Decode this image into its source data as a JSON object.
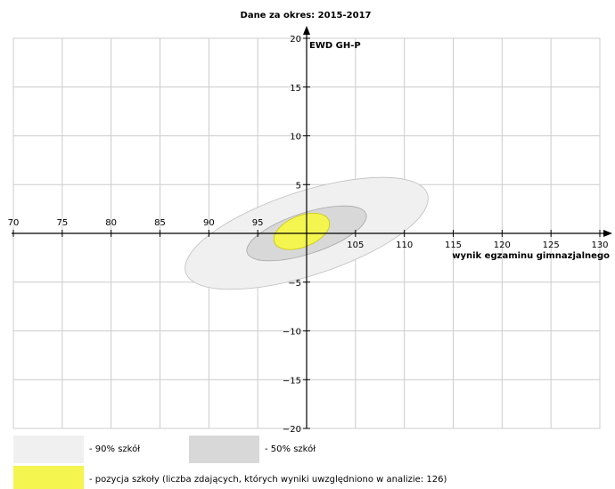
{
  "chart_data": {
    "type": "scatter",
    "title": "Dane za okres: 2015-2017",
    "xlabel": "wynik egzaminu gimnazjalnego",
    "ylabel": "EWD GH-P",
    "xlim": [
      70,
      130
    ],
    "ylim": [
      -20,
      20
    ],
    "x_ticks": [
      70,
      75,
      80,
      85,
      90,
      95,
      100,
      105,
      110,
      115,
      120,
      125,
      130
    ],
    "y_ticks": [
      -20,
      -15,
      -10,
      -5,
      0,
      5,
      10,
      15,
      20
    ],
    "x_tick_labels": [
      "70",
      "75",
      "80",
      "85",
      "90",
      "95",
      "",
      "105",
      "110",
      "115",
      "120",
      "125",
      "130"
    ],
    "y_tick_labels": [
      "−20",
      "−15",
      "−10",
      "−5",
      "",
      "5",
      "10",
      "15",
      "20"
    ],
    "grid": true,
    "series": [
      {
        "name": "- 90% szkół",
        "cx": 100.0,
        "cy": 0.0,
        "rx": 13.0,
        "ry": 4.3,
        "angle": 18,
        "color": "#f0f0f0",
        "stroke": "#bfbfbf"
      },
      {
        "name": "- 50% szkół",
        "cx": 100.0,
        "cy": 0.0,
        "rx": 6.4,
        "ry": 2.1,
        "angle": 18,
        "color": "#d8d8d8",
        "stroke": "#a8a8a8"
      },
      {
        "name": "- pozycja szkoły (liczba zdających, których wyniki uwzględniono w analizie: 126)",
        "cx": 99.5,
        "cy": 0.2,
        "rx": 3.0,
        "ry": 1.6,
        "angle": 22,
        "color": "#f5f550",
        "stroke": "#c8c800"
      }
    ]
  }
}
